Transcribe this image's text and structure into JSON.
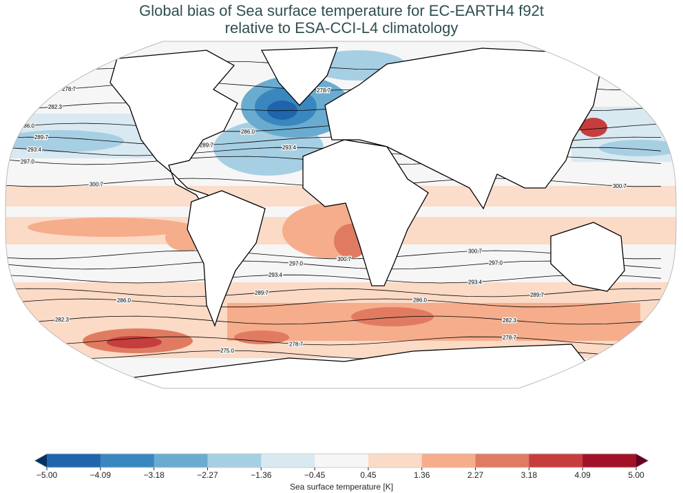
{
  "title": {
    "line1": "Global bias of Sea surface temperature for EC-EARTH4 f92t",
    "line2": "relative to ESA-CCI-L4 climatology"
  },
  "map": {
    "projection": "Robinson",
    "contour_levels": [
      "275.0",
      "278.7",
      "282.3",
      "286.0",
      "289.7",
      "293.4",
      "297.0",
      "300.7"
    ],
    "land_color": "#ffffff",
    "coastline_color": "#000000"
  },
  "colorbar": {
    "label": "Sea surface temperature [K]",
    "ticks": [
      "−5.00",
      "−4.09",
      "−3.18",
      "−2.27",
      "−1.36",
      "−0.45",
      "0.45",
      "1.36",
      "2.27",
      "3.18",
      "4.09",
      "5.00"
    ],
    "colors": [
      "#2065ab",
      "#3a87bf",
      "#6aacd0",
      "#a7cfe4",
      "#d9e9f1",
      "#f6f6f6",
      "#fbdac6",
      "#f5ad8c",
      "#e07b62",
      "#c53e3d",
      "#a11228"
    ],
    "extend_low_color": "#053061",
    "extend_high_color": "#67001f",
    "extend": "both"
  }
}
